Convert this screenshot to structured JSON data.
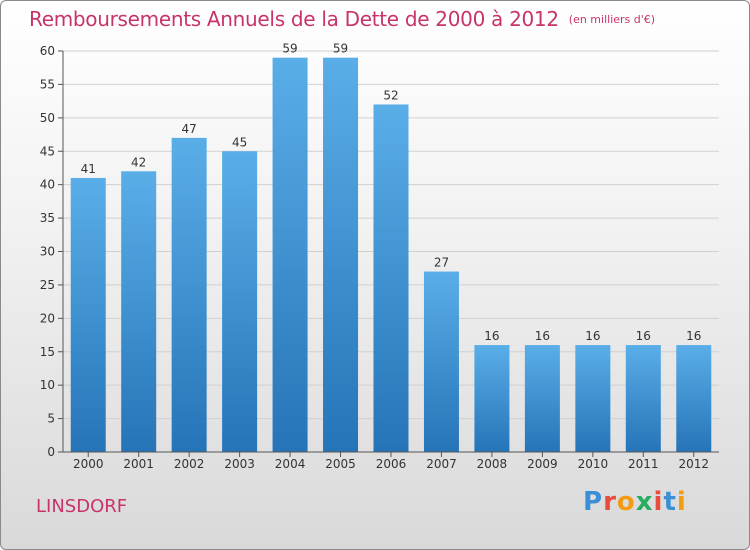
{
  "title": "Remboursements Annuels de la Dette de 2000 à 2012",
  "subtitle": "(en milliers d'€)",
  "commune": "LINSDORF",
  "logo": {
    "text": "Proxiti",
    "colors": [
      "#3a8fd6",
      "#e74c3c",
      "#f39c12",
      "#27ae60",
      "#e74c3c",
      "#3a8fd6",
      "#f39c12"
    ]
  },
  "colors": {
    "title": "#c8336b",
    "bar_top": "#5aaee8",
    "bar_bottom": "#2574b8",
    "grid": "#d0d0d0",
    "axis": "#555555"
  },
  "chart_data": {
    "type": "bar",
    "categories": [
      "2000",
      "2001",
      "2002",
      "2003",
      "2004",
      "2005",
      "2006",
      "2007",
      "2008",
      "2009",
      "2010",
      "2011",
      "2012"
    ],
    "values": [
      41,
      42,
      47,
      45,
      59,
      59,
      52,
      27,
      16,
      16,
      16,
      16,
      16
    ],
    "data_labels": [
      "41",
      "42",
      "47",
      "45",
      "59",
      "59",
      "52",
      "27",
      "16",
      "16",
      "16",
      "16",
      "16"
    ],
    "yticks": [
      0,
      5,
      10,
      15,
      20,
      25,
      30,
      35,
      40,
      45,
      50,
      55,
      60
    ],
    "ylim": [
      0,
      60
    ],
    "grid": true
  }
}
